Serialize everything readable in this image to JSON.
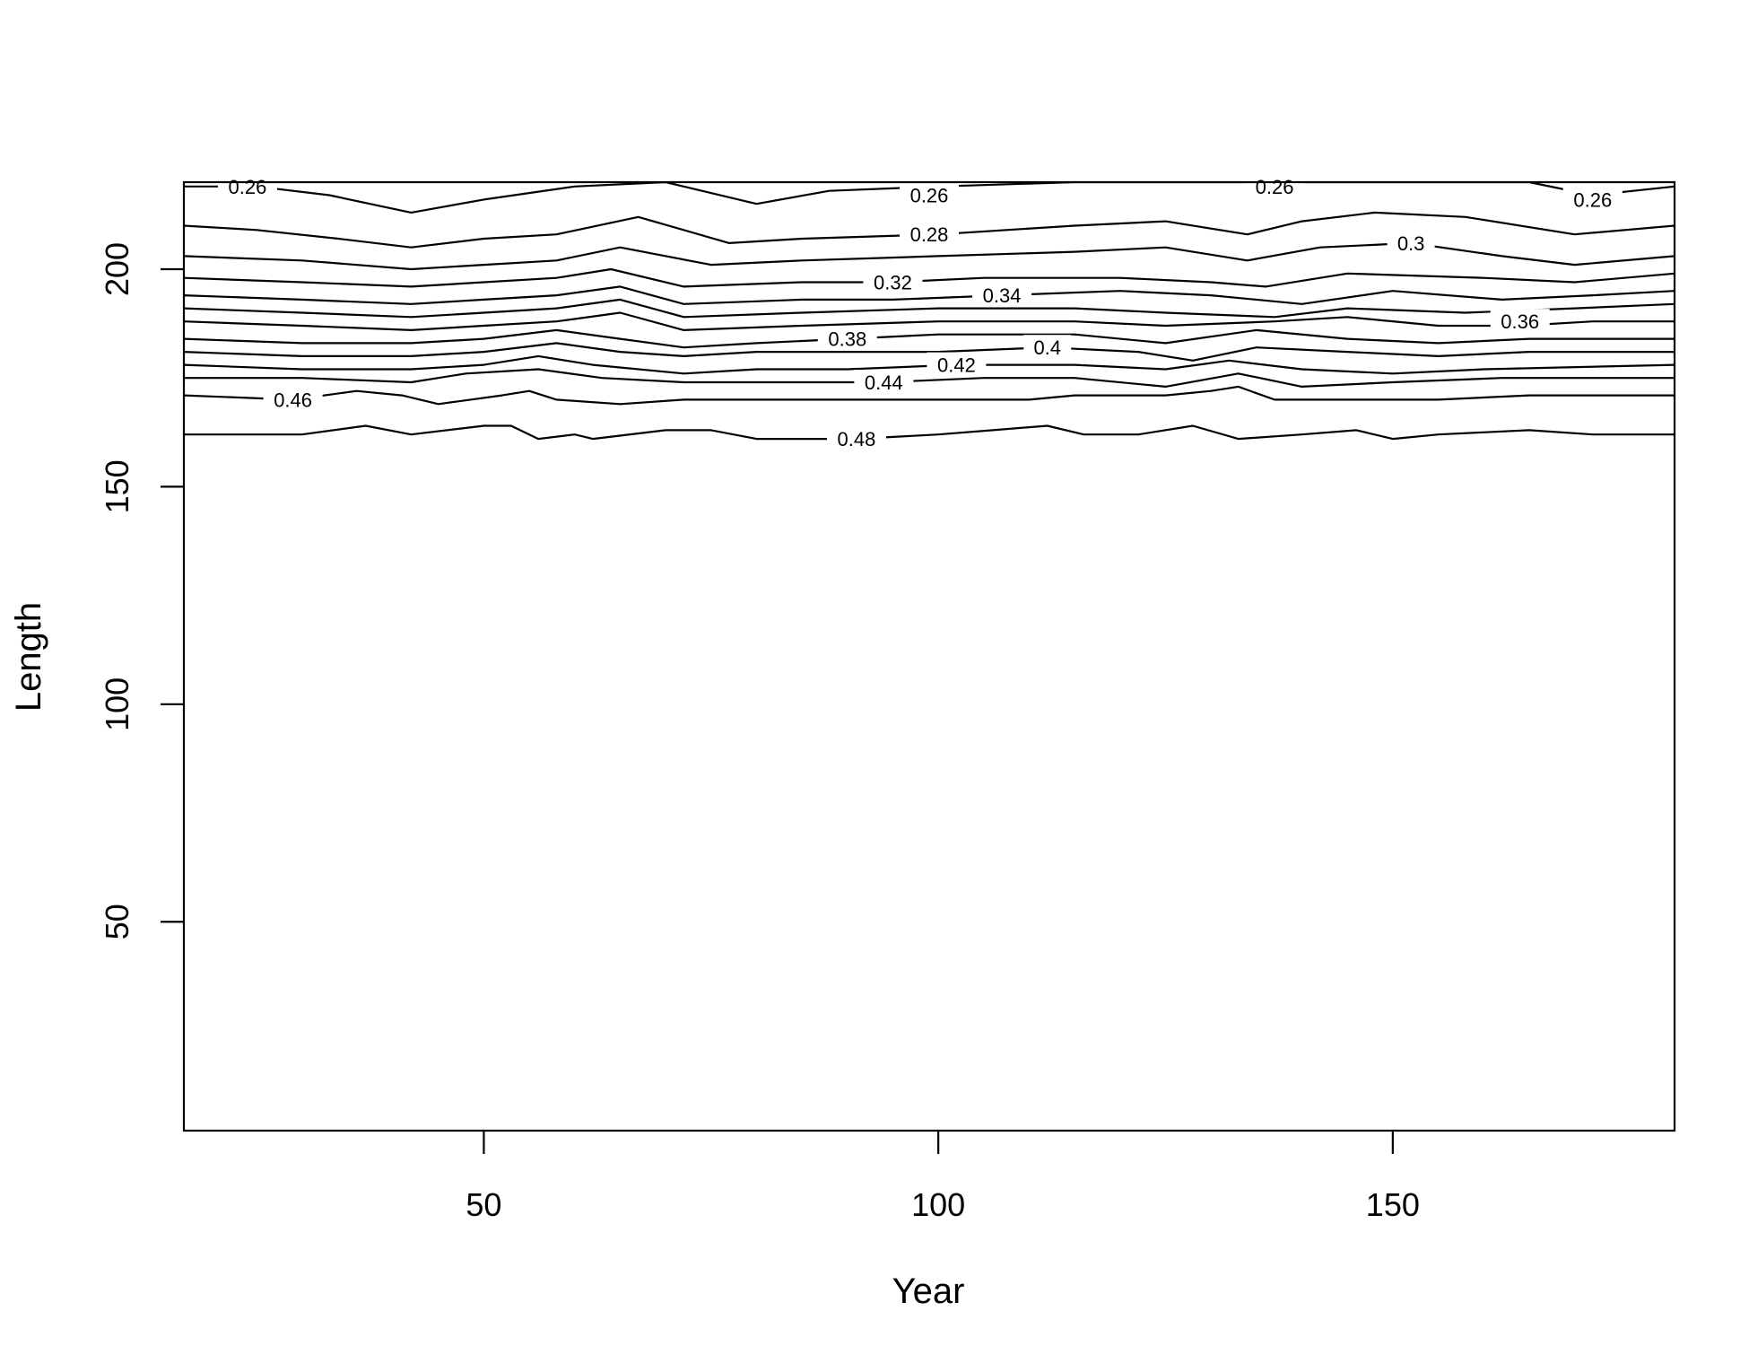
{
  "chart_data": {
    "type": "contour",
    "xlabel": "Year",
    "ylabel": "Length",
    "xlim": [
      17,
      181
    ],
    "ylim": [
      2,
      220
    ],
    "x_ticks": [
      50,
      100,
      150
    ],
    "y_ticks": [
      50,
      100,
      150,
      200
    ],
    "grid": false,
    "line_color": "#000000",
    "contours": [
      {
        "level": "0.26",
        "label_x": 24,
        "label_y": 219,
        "points": [
          [
            17,
            219
          ],
          [
            25,
            219
          ],
          [
            33,
            217
          ],
          [
            42,
            213
          ],
          [
            50,
            216
          ],
          [
            60,
            219
          ],
          [
            70,
            220
          ],
          [
            80,
            215
          ],
          [
            88,
            218
          ],
          [
            100,
            219
          ],
          [
            115,
            220
          ],
          [
            125,
            220
          ],
          [
            135,
            220
          ],
          [
            145,
            220
          ],
          [
            155,
            220
          ],
          [
            165,
            220
          ],
          [
            172,
            217
          ],
          [
            181,
            219
          ]
        ]
      },
      {
        "level": "0.26",
        "label_x": 99,
        "label_y": 217,
        "points": []
      },
      {
        "level": "0.26",
        "label_x": 137,
        "label_y": 219,
        "points": []
      },
      {
        "level": "0.26",
        "label_x": 172,
        "label_y": 216,
        "points": []
      },
      {
        "level": "0.28",
        "label_x": 99,
        "label_y": 208,
        "points": [
          [
            17,
            210
          ],
          [
            25,
            209
          ],
          [
            34,
            207
          ],
          [
            42,
            205
          ],
          [
            50,
            207
          ],
          [
            58,
            208
          ],
          [
            67,
            212
          ],
          [
            77,
            206
          ],
          [
            85,
            207
          ],
          [
            100,
            208
          ],
          [
            115,
            210
          ],
          [
            125,
            211
          ],
          [
            134,
            208
          ],
          [
            140,
            211
          ],
          [
            148,
            213
          ],
          [
            158,
            212
          ],
          [
            170,
            208
          ],
          [
            181,
            210
          ]
        ]
      },
      {
        "level": "0.3",
        "label_x": 152,
        "label_y": 206,
        "points": [
          [
            17,
            203
          ],
          [
            30,
            202
          ],
          [
            42,
            200
          ],
          [
            50,
            201
          ],
          [
            58,
            202
          ],
          [
            65,
            205
          ],
          [
            75,
            201
          ],
          [
            85,
            202
          ],
          [
            100,
            203
          ],
          [
            115,
            204
          ],
          [
            125,
            205
          ],
          [
            134,
            202
          ],
          [
            142,
            205
          ],
          [
            152,
            206
          ],
          [
            162,
            203
          ],
          [
            170,
            201
          ],
          [
            181,
            203
          ]
        ]
      },
      {
        "level": "0.32",
        "label_x": 95,
        "label_y": 197,
        "points": [
          [
            17,
            198
          ],
          [
            30,
            197
          ],
          [
            42,
            196
          ],
          [
            50,
            197
          ],
          [
            58,
            198
          ],
          [
            64,
            200
          ],
          [
            72,
            196
          ],
          [
            85,
            197
          ],
          [
            95,
            197
          ],
          [
            105,
            198
          ],
          [
            120,
            198
          ],
          [
            130,
            197
          ],
          [
            136,
            196
          ],
          [
            145,
            199
          ],
          [
            160,
            198
          ],
          [
            170,
            197
          ],
          [
            181,
            199
          ]
        ]
      },
      {
        "level": "0.34",
        "label_x": 107,
        "label_y": 194,
        "points": [
          [
            17,
            194
          ],
          [
            30,
            193
          ],
          [
            42,
            192
          ],
          [
            50,
            193
          ],
          [
            58,
            194
          ],
          [
            65,
            196
          ],
          [
            72,
            192
          ],
          [
            85,
            193
          ],
          [
            95,
            193
          ],
          [
            107,
            194
          ],
          [
            120,
            195
          ],
          [
            130,
            194
          ],
          [
            140,
            192
          ],
          [
            150,
            195
          ],
          [
            162,
            193
          ],
          [
            172,
            194
          ],
          [
            181,
            195
          ]
        ]
      },
      {
        "level": "",
        "label_x": 0,
        "label_y": 0,
        "points": [
          [
            17,
            191
          ],
          [
            30,
            190
          ],
          [
            42,
            189
          ],
          [
            50,
            190
          ],
          [
            58,
            191
          ],
          [
            65,
            193
          ],
          [
            72,
            189
          ],
          [
            85,
            190
          ],
          [
            100,
            191
          ],
          [
            115,
            191
          ],
          [
            125,
            190
          ],
          [
            137,
            189
          ],
          [
            145,
            191
          ],
          [
            158,
            190
          ],
          [
            170,
            191
          ],
          [
            181,
            192
          ]
        ]
      },
      {
        "level": "0.36",
        "label_x": 164,
        "label_y": 188,
        "points": [
          [
            17,
            188
          ],
          [
            30,
            187
          ],
          [
            42,
            186
          ],
          [
            50,
            187
          ],
          [
            58,
            188
          ],
          [
            65,
            190
          ],
          [
            72,
            186
          ],
          [
            85,
            187
          ],
          [
            100,
            188
          ],
          [
            115,
            188
          ],
          [
            125,
            187
          ],
          [
            137,
            188
          ],
          [
            145,
            189
          ],
          [
            155,
            187
          ],
          [
            164,
            187
          ],
          [
            172,
            188
          ],
          [
            181,
            188
          ]
        ]
      },
      {
        "level": "0.38",
        "label_x": 90,
        "label_y": 184,
        "points": [
          [
            17,
            184
          ],
          [
            30,
            183
          ],
          [
            42,
            183
          ],
          [
            50,
            184
          ],
          [
            58,
            186
          ],
          [
            65,
            184
          ],
          [
            72,
            182
          ],
          [
            80,
            183
          ],
          [
            90,
            184
          ],
          [
            100,
            185
          ],
          [
            115,
            185
          ],
          [
            125,
            183
          ],
          [
            135,
            186
          ],
          [
            145,
            184
          ],
          [
            155,
            183
          ],
          [
            165,
            184
          ],
          [
            181,
            184
          ]
        ]
      },
      {
        "level": "0.4",
        "label_x": 112,
        "label_y": 182,
        "points": [
          [
            17,
            181
          ],
          [
            30,
            180
          ],
          [
            42,
            180
          ],
          [
            50,
            181
          ],
          [
            58,
            183
          ],
          [
            65,
            181
          ],
          [
            72,
            180
          ],
          [
            80,
            181
          ],
          [
            90,
            181
          ],
          [
            100,
            181
          ],
          [
            112,
            182
          ],
          [
            122,
            181
          ],
          [
            128,
            179
          ],
          [
            135,
            182
          ],
          [
            145,
            181
          ],
          [
            155,
            180
          ],
          [
            165,
            181
          ],
          [
            181,
            181
          ]
        ]
      },
      {
        "level": "0.42",
        "label_x": 102,
        "label_y": 178,
        "points": [
          [
            17,
            178
          ],
          [
            30,
            177
          ],
          [
            42,
            177
          ],
          [
            50,
            178
          ],
          [
            56,
            180
          ],
          [
            62,
            178
          ],
          [
            72,
            176
          ],
          [
            80,
            177
          ],
          [
            90,
            177
          ],
          [
            102,
            178
          ],
          [
            115,
            178
          ],
          [
            125,
            177
          ],
          [
            132,
            179
          ],
          [
            140,
            177
          ],
          [
            150,
            176
          ],
          [
            160,
            177
          ],
          [
            181,
            178
          ]
        ]
      },
      {
        "level": "0.44",
        "label_x": 94,
        "label_y": 174,
        "points": [
          [
            17,
            175
          ],
          [
            30,
            175
          ],
          [
            42,
            174
          ],
          [
            48,
            176
          ],
          [
            56,
            177
          ],
          [
            63,
            175
          ],
          [
            72,
            174
          ],
          [
            80,
            174
          ],
          [
            94,
            174
          ],
          [
            105,
            175
          ],
          [
            115,
            175
          ],
          [
            125,
            173
          ],
          [
            133,
            176
          ],
          [
            140,
            173
          ],
          [
            150,
            174
          ],
          [
            162,
            175
          ],
          [
            172,
            175
          ],
          [
            181,
            175
          ]
        ]
      },
      {
        "level": "0.46",
        "label_x": 29,
        "label_y": 170,
        "points": [
          [
            17,
            171
          ],
          [
            29,
            170
          ],
          [
            36,
            172
          ],
          [
            41,
            171
          ],
          [
            45,
            169
          ],
          [
            52,
            171
          ],
          [
            55,
            172
          ],
          [
            58,
            170
          ],
          [
            65,
            169
          ],
          [
            72,
            170
          ],
          [
            85,
            170
          ],
          [
            100,
            170
          ],
          [
            110,
            170
          ],
          [
            115,
            171
          ],
          [
            125,
            171
          ],
          [
            130,
            172
          ],
          [
            133,
            173
          ],
          [
            137,
            170
          ],
          [
            145,
            170
          ],
          [
            155,
            170
          ],
          [
            165,
            171
          ],
          [
            181,
            171
          ]
        ]
      },
      {
        "level": "0.48",
        "label_x": 91,
        "label_y": 161,
        "points": [
          [
            17,
            162
          ],
          [
            30,
            162
          ],
          [
            37,
            164
          ],
          [
            42,
            162
          ],
          [
            50,
            164
          ],
          [
            53,
            164
          ],
          [
            56,
            161
          ],
          [
            60,
            162
          ],
          [
            62,
            161
          ],
          [
            70,
            163
          ],
          [
            75,
            163
          ],
          [
            80,
            161
          ],
          [
            91,
            161
          ],
          [
            100,
            162
          ],
          [
            106,
            163
          ],
          [
            112,
            164
          ],
          [
            116,
            162
          ],
          [
            122,
            162
          ],
          [
            128,
            164
          ],
          [
            133,
            161
          ],
          [
            140,
            162
          ],
          [
            146,
            163
          ],
          [
            150,
            161
          ],
          [
            155,
            162
          ],
          [
            165,
            163
          ],
          [
            172,
            162
          ],
          [
            181,
            162
          ]
        ]
      }
    ]
  }
}
